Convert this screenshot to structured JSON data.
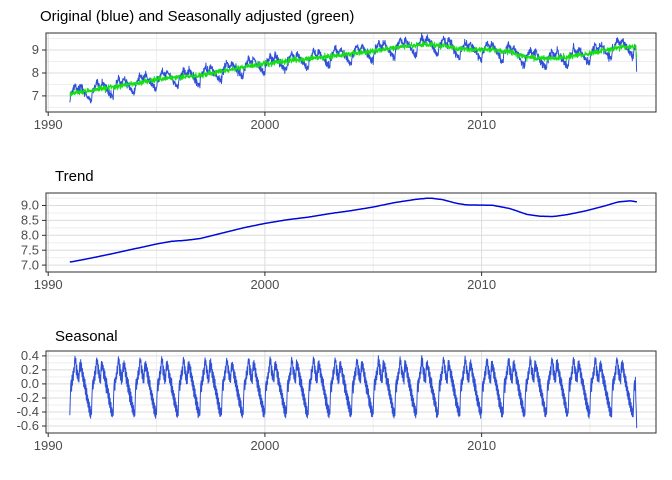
{
  "figure": {
    "background": "#ffffff",
    "description": "Time series decomposition: original and seasonally adjusted series, trend component, seasonal component"
  },
  "chart_data": {
    "type": "line",
    "x_label_ticks": [
      {
        "value": 1990,
        "label": "1990"
      },
      {
        "value": 2000,
        "label": "2000"
      },
      {
        "value": 2010,
        "label": "2010"
      }
    ],
    "x_minor_ticks": [
      1995,
      2005,
      2015
    ],
    "xlim": [
      1989.9,
      2018.05
    ],
    "data_start_year": 1991.0,
    "data_end_year": 2017.15,
    "grid": {
      "major_color": "#dcdcdc",
      "minor_color": "#eeeeee",
      "border_color": "#2f2f2f",
      "tick_color": "#2f2f2f",
      "label_color": "#4d4d4d",
      "title_color": "#000000"
    },
    "trend_keypoints": [
      [
        1991.0,
        7.1
      ],
      [
        1992.0,
        7.24
      ],
      [
        1993.0,
        7.39
      ],
      [
        1994.0,
        7.55
      ],
      [
        1995.0,
        7.71
      ],
      [
        1995.7,
        7.8
      ],
      [
        1996.3,
        7.83
      ],
      [
        1997.0,
        7.89
      ],
      [
        1998.0,
        8.07
      ],
      [
        1999.0,
        8.25
      ],
      [
        2000.0,
        8.4
      ],
      [
        2001.0,
        8.52
      ],
      [
        2002.0,
        8.61
      ],
      [
        2003.0,
        8.73
      ],
      [
        2004.0,
        8.83
      ],
      [
        2005.0,
        8.95
      ],
      [
        2006.0,
        9.1
      ],
      [
        2007.0,
        9.21
      ],
      [
        2007.6,
        9.25
      ],
      [
        2008.2,
        9.2
      ],
      [
        2008.8,
        9.08
      ],
      [
        2009.3,
        9.02
      ],
      [
        2010.5,
        9.01
      ],
      [
        2011.3,
        8.9
      ],
      [
        2012.1,
        8.7
      ],
      [
        2012.7,
        8.64
      ],
      [
        2013.3,
        8.63
      ],
      [
        2014.0,
        8.7
      ],
      [
        2014.8,
        8.82
      ],
      [
        2015.6,
        8.97
      ],
      [
        2016.3,
        9.12
      ],
      [
        2016.9,
        9.16
      ],
      [
        2017.15,
        9.12
      ]
    ],
    "seasonal_pattern": [
      [
        0.0,
        -0.44
      ],
      [
        0.02,
        -0.2
      ],
      [
        0.04,
        -0.02
      ],
      [
        0.06,
        0.06
      ],
      [
        0.08,
        -0.1
      ],
      [
        0.1,
        0.1
      ],
      [
        0.12,
        0.0
      ],
      [
        0.14,
        0.18
      ],
      [
        0.16,
        0.06
      ],
      [
        0.18,
        0.24
      ],
      [
        0.2,
        0.14
      ],
      [
        0.22,
        0.32
      ],
      [
        0.24,
        0.38
      ],
      [
        0.26,
        0.28
      ],
      [
        0.28,
        0.35
      ],
      [
        0.3,
        0.14
      ],
      [
        0.32,
        0.26
      ],
      [
        0.34,
        0.06
      ],
      [
        0.36,
        0.2
      ],
      [
        0.38,
        0.02
      ],
      [
        0.4,
        0.14
      ],
      [
        0.42,
        0.02
      ],
      [
        0.44,
        0.22
      ],
      [
        0.46,
        0.32
      ],
      [
        0.48,
        0.18
      ],
      [
        0.5,
        0.33
      ],
      [
        0.52,
        0.2
      ],
      [
        0.54,
        0.28
      ],
      [
        0.56,
        0.1
      ],
      [
        0.58,
        0.22
      ],
      [
        0.6,
        0.02
      ],
      [
        0.62,
        0.16
      ],
      [
        0.64,
        -0.04
      ],
      [
        0.66,
        0.1
      ],
      [
        0.68,
        -0.1
      ],
      [
        0.7,
        0.06
      ],
      [
        0.72,
        -0.16
      ],
      [
        0.74,
        -0.02
      ],
      [
        0.76,
        -0.22
      ],
      [
        0.78,
        -0.08
      ],
      [
        0.8,
        -0.3
      ],
      [
        0.82,
        -0.14
      ],
      [
        0.84,
        -0.34
      ],
      [
        0.86,
        -0.2
      ],
      [
        0.88,
        -0.4
      ],
      [
        0.9,
        -0.26
      ],
      [
        0.92,
        -0.46
      ],
      [
        0.94,
        -0.32
      ],
      [
        0.96,
        -0.48
      ],
      [
        0.98,
        -0.36
      ]
    ],
    "panels": [
      {
        "id": "original",
        "title": "Original (blue) and Seasonally adjusted (green)",
        "ylim": [
          6.3,
          9.74
        ],
        "y_ticks": [
          {
            "value": 7,
            "label": "7"
          },
          {
            "value": 8,
            "label": "8"
          },
          {
            "value": 9,
            "label": "9"
          }
        ],
        "y_minor_ticks": [
          6.5,
          7.5,
          8.5,
          9.5
        ],
        "series": [
          {
            "name": "Original",
            "color": "#3050d5",
            "width": 1,
            "components": [
              "trend",
              "seasonal",
              "noise"
            ],
            "noise_sd": 0.07,
            "seed": 11,
            "samples_per_year": 90,
            "end_value": 8.05
          },
          {
            "name": "Seasonally adjusted",
            "color": "#16de16",
            "width": 1,
            "components": [
              "trend",
              "noise"
            ],
            "noise_sd": 0.06,
            "seed": 29,
            "samples_per_year": 90,
            "end_value": 8.62
          }
        ]
      },
      {
        "id": "trend",
        "title": "Trend",
        "ylim": [
          6.77,
          9.42
        ],
        "y_ticks": [
          {
            "value": 7.0,
            "label": "7.0"
          },
          {
            "value": 7.5,
            "label": "7.5"
          },
          {
            "value": 8.0,
            "label": "8.0"
          },
          {
            "value": 8.5,
            "label": "8.5"
          },
          {
            "value": 9.0,
            "label": "9.0"
          }
        ],
        "y_minor_ticks": [
          7.25,
          7.75,
          8.25,
          8.75,
          9.25
        ],
        "series": [
          {
            "name": "Trend",
            "color": "#0008d8",
            "width": 1.5,
            "components": [
              "trend"
            ],
            "noise_sd": 0,
            "seed": 1,
            "samples_per_year": 24,
            "smooth": 5,
            "end_value": null
          }
        ]
      },
      {
        "id": "seasonal",
        "title": "Seasonal",
        "ylim": [
          -0.7,
          0.47
        ],
        "y_ticks": [
          {
            "value": 0.4,
            "label": "0.4"
          },
          {
            "value": 0.2,
            "label": "0.2"
          },
          {
            "value": 0.0,
            "label": "0.0"
          },
          {
            "value": -0.2,
            "label": "-0.2"
          },
          {
            "value": -0.4,
            "label": "-0.4"
          },
          {
            "value": -0.6,
            "label": "-0.6"
          }
        ],
        "y_minor_ticks": [
          0.3,
          0.1,
          -0.1,
          -0.3,
          -0.5
        ],
        "series": [
          {
            "name": "Seasonal",
            "color": "#3050d5",
            "width": 1,
            "components": [
              "seasonal",
              "noise"
            ],
            "noise_sd": 0.012,
            "seed": 7,
            "samples_per_year": 50,
            "end_value": -0.63
          }
        ]
      }
    ]
  }
}
